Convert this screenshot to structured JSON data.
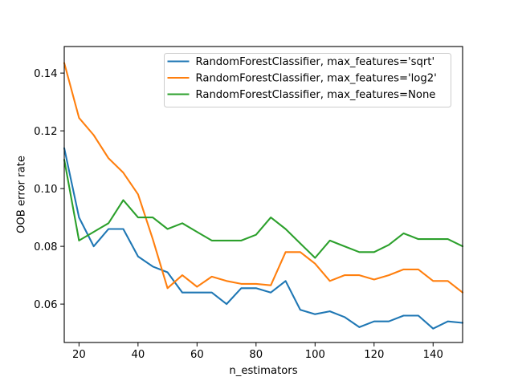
{
  "figure": {
    "background": "#ffffff",
    "axis_color": "#000000",
    "legend_border_color": "#cccccc"
  },
  "chart_data": {
    "type": "line",
    "title": "",
    "xlabel": "n_estimators",
    "ylabel": "OOB error rate",
    "xlim": [
      15,
      150
    ],
    "ylim": [
      0.0467,
      0.1492
    ],
    "grid": false,
    "legend_position": "upper right",
    "xticks": [
      20,
      40,
      60,
      80,
      100,
      120,
      140
    ],
    "xtick_labels": [
      "20",
      "40",
      "60",
      "80",
      "100",
      "120",
      "140"
    ],
    "yticks": [
      0.06,
      0.08,
      0.1,
      0.12,
      0.14
    ],
    "ytick_labels": [
      "0.06",
      "0.08",
      "0.10",
      "0.12",
      "0.14"
    ],
    "x": [
      15,
      20,
      25,
      30,
      35,
      40,
      45,
      50,
      55,
      60,
      65,
      70,
      75,
      80,
      85,
      90,
      95,
      100,
      105,
      110,
      115,
      120,
      125,
      130,
      135,
      140,
      145,
      150
    ],
    "series": [
      {
        "name": "RandomForestClassifier, max_features='sqrt'",
        "color": "#1f77b4",
        "values": [
          0.114,
          0.09,
          0.08,
          0.086,
          0.086,
          0.0765,
          0.073,
          0.071,
          0.064,
          0.064,
          0.064,
          0.06,
          0.0655,
          0.0655,
          0.064,
          0.068,
          0.058,
          0.0565,
          0.0575,
          0.0555,
          0.052,
          0.054,
          0.054,
          0.056,
          0.056,
          0.0515,
          0.054,
          0.0535
        ]
      },
      {
        "name": "RandomForestClassifier, max_features='log2'",
        "color": "#ff7f0e",
        "values": [
          0.1435,
          0.1245,
          0.1185,
          0.1105,
          0.1055,
          0.098,
          0.0825,
          0.0655,
          0.07,
          0.066,
          0.0695,
          0.068,
          0.067,
          0.067,
          0.0665,
          0.078,
          0.078,
          0.074,
          0.068,
          0.07,
          0.07,
          0.0685,
          0.07,
          0.072,
          0.072,
          0.068,
          0.068,
          0.064
        ]
      },
      {
        "name": "RandomForestClassifier, max_features=None",
        "color": "#2ca02c",
        "values": [
          0.11,
          0.082,
          0.085,
          0.088,
          0.096,
          0.09,
          0.09,
          0.086,
          0.088,
          0.085,
          0.082,
          0.082,
          0.082,
          0.084,
          0.09,
          0.086,
          0.081,
          0.076,
          0.082,
          0.08,
          0.078,
          0.078,
          0.0805,
          0.0845,
          0.0825,
          0.0825,
          0.0825,
          0.08
        ]
      }
    ]
  }
}
